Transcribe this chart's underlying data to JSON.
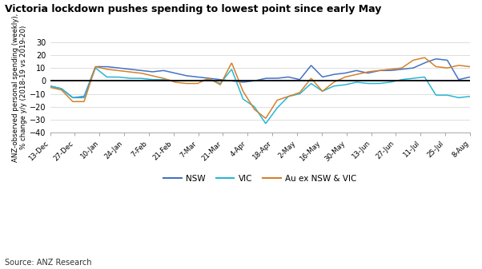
{
  "title": "Victoria lockdown pushes spending to lowest point since early May",
  "ylabel": "ANZ-observed personal spending (weekly),\n% change y/y (2018-19 vs 2019-20)",
  "source": "Source: ANZ Research",
  "ylim": [
    -40,
    30
  ],
  "yticks": [
    -40,
    -30,
    -20,
    -10,
    0,
    10,
    20,
    30
  ],
  "color_nsw": "#4472c4",
  "color_vic": "#29b6d5",
  "color_au": "#d4812a",
  "legend_labels": [
    "NSW",
    "VIC",
    "Au ex NSW & VIC"
  ],
  "x_labels": [
    "13-Dec",
    "27-Dec",
    "10-Jan",
    "24-Jan",
    "7-Feb",
    "21-Feb",
    "7-Mar",
    "21-Mar",
    "4-Apr",
    "18-Apr",
    "2-May",
    "16-May",
    "30-May",
    "13-Jun",
    "27-Jun",
    "11-Jul",
    "25-Jul",
    "8-Aug"
  ],
  "nsw": [
    -4,
    -6,
    -13,
    -12,
    11,
    11,
    10,
    9,
    8,
    7,
    8,
    6,
    4,
    3,
    2,
    1,
    0,
    -1,
    0,
    2,
    2,
    3,
    1,
    12,
    3,
    5,
    6,
    8,
    6,
    8,
    8,
    9,
    10,
    14,
    17,
    16,
    1,
    3
  ],
  "vic": [
    -4,
    -6,
    -13,
    -13,
    10,
    3,
    3,
    2,
    2,
    1,
    1,
    0,
    0,
    0,
    1,
    -2,
    9,
    -14,
    -20,
    -33,
    -21,
    -12,
    -10,
    -2,
    -8,
    -4,
    -3,
    -1,
    -2,
    -2,
    -1,
    1,
    2,
    3,
    -11,
    -11,
    -13,
    -12
  ],
  "au": [
    -5,
    -7,
    -16,
    -16,
    11,
    9,
    8,
    7,
    6,
    4,
    2,
    -1,
    -2,
    -2,
    2,
    -3,
    14,
    -8,
    -22,
    -29,
    -15,
    -12,
    -9,
    2,
    -8,
    -1,
    3,
    5,
    7,
    8,
    9,
    10,
    16,
    18,
    11,
    10,
    12,
    11
  ],
  "n_raw": 38
}
